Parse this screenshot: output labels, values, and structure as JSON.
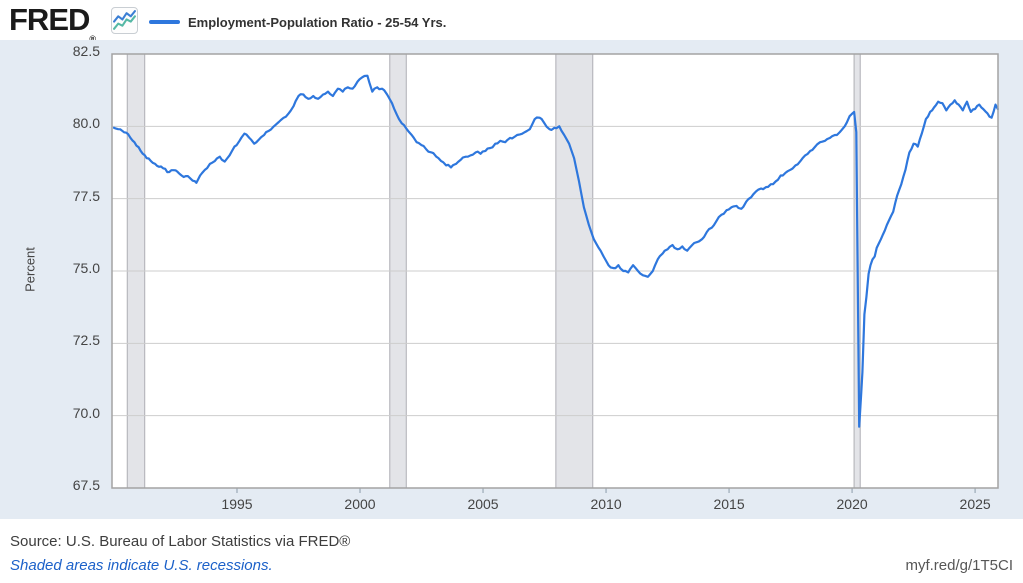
{
  "header": {
    "logo": "FRED",
    "registered": "®",
    "legend_label": "Employment-Population Ratio - 25-54 Yrs."
  },
  "footer": {
    "source": "Source: U.S. Bureau of Labor Statistics via FRED®",
    "recession_note": "Shaded areas indicate U.S. recessions.",
    "short_url": "myf.red/g/1T5CI"
  },
  "colors": {
    "page_bg": "#ffffff",
    "band_bg": "#e4ebf3",
    "plot_bg": "#ffffff",
    "grid": "#cdcdcd",
    "border": "#a3a3a3",
    "tick": "#a9b6c2",
    "line": "#2e77dd",
    "recession_fill": "#e3e4e8",
    "recession_edge": "#aeaeb4",
    "icon_blue": "#3b7fd4",
    "icon_teal": "#55b8a5",
    "link_blue": "#1c61c9"
  },
  "chart_data": {
    "type": "line",
    "title": "Employment-Population Ratio - 25-54 Yrs.",
    "xlabel": "",
    "ylabel": "Percent",
    "x_range": [
      1989.92,
      2025.93
    ],
    "y_range": [
      67.5,
      82.5
    ],
    "x_ticks": [
      "1995",
      "2000",
      "2005",
      "2010",
      "2015",
      "2020",
      "2025"
    ],
    "y_ticks": [
      "82.5",
      "80.0",
      "77.5",
      "75.0",
      "72.5",
      "70.0",
      "67.5"
    ],
    "grid": "horizontal",
    "legend_position": "top-left",
    "noise_amplitude": 0.06,
    "recessions": [
      [
        1990.54,
        1991.25
      ],
      [
        2001.21,
        2001.88
      ],
      [
        2007.96,
        2009.46
      ],
      [
        2020.08,
        2020.33
      ]
    ],
    "series": [
      {
        "name": "Employment-Population Ratio - 25-54 Yrs.",
        "points": [
          [
            1990.0,
            79.95
          ],
          [
            1990.17,
            79.9
          ],
          [
            1990.33,
            79.85
          ],
          [
            1990.5,
            79.78
          ],
          [
            1990.67,
            79.6
          ],
          [
            1990.83,
            79.45
          ],
          [
            1991.0,
            79.28
          ],
          [
            1991.17,
            79.05
          ],
          [
            1991.33,
            78.9
          ],
          [
            1991.5,
            78.8
          ],
          [
            1991.67,
            78.7
          ],
          [
            1991.83,
            78.6
          ],
          [
            1992.0,
            78.55
          ],
          [
            1992.25,
            78.42
          ],
          [
            1992.5,
            78.48
          ],
          [
            1992.75,
            78.3
          ],
          [
            1993.0,
            78.28
          ],
          [
            1993.2,
            78.12
          ],
          [
            1993.35,
            78.05
          ],
          [
            1993.5,
            78.3
          ],
          [
            1993.7,
            78.5
          ],
          [
            1993.9,
            78.7
          ],
          [
            1994.1,
            78.8
          ],
          [
            1994.3,
            78.95
          ],
          [
            1994.5,
            78.78
          ],
          [
            1994.7,
            79.0
          ],
          [
            1994.9,
            79.3
          ],
          [
            1995.1,
            79.5
          ],
          [
            1995.3,
            79.75
          ],
          [
            1995.5,
            79.6
          ],
          [
            1995.7,
            79.4
          ],
          [
            1995.9,
            79.55
          ],
          [
            1996.1,
            79.7
          ],
          [
            1996.3,
            79.85
          ],
          [
            1996.5,
            80.0
          ],
          [
            1996.7,
            80.15
          ],
          [
            1996.9,
            80.3
          ],
          [
            1997.1,
            80.45
          ],
          [
            1997.3,
            80.7
          ],
          [
            1997.5,
            81.05
          ],
          [
            1997.7,
            81.1
          ],
          [
            1997.9,
            80.95
          ],
          [
            1998.1,
            81.05
          ],
          [
            1998.3,
            80.95
          ],
          [
            1998.5,
            81.1
          ],
          [
            1998.7,
            81.2
          ],
          [
            1998.9,
            81.05
          ],
          [
            1999.1,
            81.3
          ],
          [
            1999.3,
            81.2
          ],
          [
            1999.5,
            81.35
          ],
          [
            1999.7,
            81.3
          ],
          [
            1999.9,
            81.55
          ],
          [
            2000.1,
            81.7
          ],
          [
            2000.3,
            81.75
          ],
          [
            2000.5,
            81.2
          ],
          [
            2000.7,
            81.35
          ],
          [
            2000.9,
            81.3
          ],
          [
            2001.1,
            81.1
          ],
          [
            2001.3,
            80.8
          ],
          [
            2001.5,
            80.4
          ],
          [
            2001.7,
            80.1
          ],
          [
            2001.9,
            79.9
          ],
          [
            2002.1,
            79.7
          ],
          [
            2002.3,
            79.45
          ],
          [
            2002.5,
            79.35
          ],
          [
            2002.7,
            79.2
          ],
          [
            2002.9,
            79.1
          ],
          [
            2003.1,
            78.95
          ],
          [
            2003.3,
            78.8
          ],
          [
            2003.5,
            78.65
          ],
          [
            2003.7,
            78.58
          ],
          [
            2003.9,
            78.7
          ],
          [
            2004.1,
            78.85
          ],
          [
            2004.3,
            78.95
          ],
          [
            2004.5,
            79.0
          ],
          [
            2004.7,
            79.1
          ],
          [
            2004.9,
            79.05
          ],
          [
            2005.1,
            79.15
          ],
          [
            2005.3,
            79.25
          ],
          [
            2005.5,
            79.4
          ],
          [
            2005.7,
            79.5
          ],
          [
            2005.9,
            79.45
          ],
          [
            2006.1,
            79.6
          ],
          [
            2006.3,
            79.65
          ],
          [
            2006.5,
            79.72
          ],
          [
            2006.7,
            79.8
          ],
          [
            2006.9,
            79.9
          ],
          [
            2007.1,
            80.25
          ],
          [
            2007.3,
            80.3
          ],
          [
            2007.5,
            80.1
          ],
          [
            2007.7,
            79.9
          ],
          [
            2007.9,
            79.95
          ],
          [
            2008.1,
            80.0
          ],
          [
            2008.3,
            79.7
          ],
          [
            2008.5,
            79.4
          ],
          [
            2008.7,
            78.9
          ],
          [
            2008.9,
            78.1
          ],
          [
            2009.1,
            77.2
          ],
          [
            2009.3,
            76.6
          ],
          [
            2009.5,
            76.1
          ],
          [
            2009.7,
            75.8
          ],
          [
            2009.9,
            75.5
          ],
          [
            2010.1,
            75.2
          ],
          [
            2010.3,
            75.1
          ],
          [
            2010.5,
            75.2
          ],
          [
            2010.7,
            75.0
          ],
          [
            2010.9,
            74.95
          ],
          [
            2011.1,
            75.2
          ],
          [
            2011.3,
            75.0
          ],
          [
            2011.5,
            74.85
          ],
          [
            2011.7,
            74.8
          ],
          [
            2011.9,
            75.0
          ],
          [
            2012.1,
            75.4
          ],
          [
            2012.3,
            75.6
          ],
          [
            2012.5,
            75.75
          ],
          [
            2012.7,
            75.9
          ],
          [
            2012.9,
            75.75
          ],
          [
            2013.1,
            75.85
          ],
          [
            2013.3,
            75.7
          ],
          [
            2013.5,
            75.9
          ],
          [
            2013.7,
            76.0
          ],
          [
            2013.9,
            76.1
          ],
          [
            2014.1,
            76.35
          ],
          [
            2014.3,
            76.5
          ],
          [
            2014.5,
            76.75
          ],
          [
            2014.7,
            76.95
          ],
          [
            2014.9,
            77.1
          ],
          [
            2015.1,
            77.2
          ],
          [
            2015.3,
            77.25
          ],
          [
            2015.5,
            77.15
          ],
          [
            2015.7,
            77.4
          ],
          [
            2015.9,
            77.55
          ],
          [
            2016.1,
            77.75
          ],
          [
            2016.3,
            77.85
          ],
          [
            2016.5,
            77.9
          ],
          [
            2016.7,
            78.0
          ],
          [
            2016.9,
            78.1
          ],
          [
            2017.1,
            78.3
          ],
          [
            2017.3,
            78.4
          ],
          [
            2017.5,
            78.5
          ],
          [
            2017.7,
            78.65
          ],
          [
            2017.9,
            78.8
          ],
          [
            2018.1,
            79.0
          ],
          [
            2018.3,
            79.15
          ],
          [
            2018.5,
            79.3
          ],
          [
            2018.7,
            79.45
          ],
          [
            2018.9,
            79.5
          ],
          [
            2019.1,
            79.6
          ],
          [
            2019.3,
            79.7
          ],
          [
            2019.5,
            79.8
          ],
          [
            2019.7,
            80.0
          ],
          [
            2019.9,
            80.35
          ],
          [
            2020.08,
            80.5
          ],
          [
            2020.17,
            79.8
          ],
          [
            2020.29,
            69.62
          ],
          [
            2020.42,
            71.5
          ],
          [
            2020.5,
            73.5
          ],
          [
            2020.58,
            74.1
          ],
          [
            2020.67,
            74.9
          ],
          [
            2020.75,
            75.2
          ],
          [
            2020.83,
            75.4
          ],
          [
            2020.92,
            75.5
          ],
          [
            2021.0,
            75.8
          ],
          [
            2021.17,
            76.1
          ],
          [
            2021.33,
            76.4
          ],
          [
            2021.5,
            76.75
          ],
          [
            2021.67,
            77.05
          ],
          [
            2021.83,
            77.6
          ],
          [
            2022.0,
            78.0
          ],
          [
            2022.17,
            78.5
          ],
          [
            2022.33,
            79.1
          ],
          [
            2022.5,
            79.4
          ],
          [
            2022.67,
            79.3
          ],
          [
            2022.75,
            79.55
          ],
          [
            2022.92,
            80.0
          ],
          [
            2023.0,
            80.25
          ],
          [
            2023.17,
            80.5
          ],
          [
            2023.33,
            80.65
          ],
          [
            2023.5,
            80.85
          ],
          [
            2023.67,
            80.8
          ],
          [
            2023.83,
            80.55
          ],
          [
            2024.0,
            80.75
          ],
          [
            2024.17,
            80.9
          ],
          [
            2024.33,
            80.75
          ],
          [
            2024.5,
            80.55
          ],
          [
            2024.67,
            80.85
          ],
          [
            2024.83,
            80.5
          ],
          [
            2025.0,
            80.6
          ],
          [
            2025.17,
            80.75
          ],
          [
            2025.33,
            80.6
          ],
          [
            2025.5,
            80.45
          ],
          [
            2025.67,
            80.3
          ],
          [
            2025.83,
            80.75
          ],
          [
            2025.92,
            80.6
          ]
        ]
      }
    ]
  }
}
